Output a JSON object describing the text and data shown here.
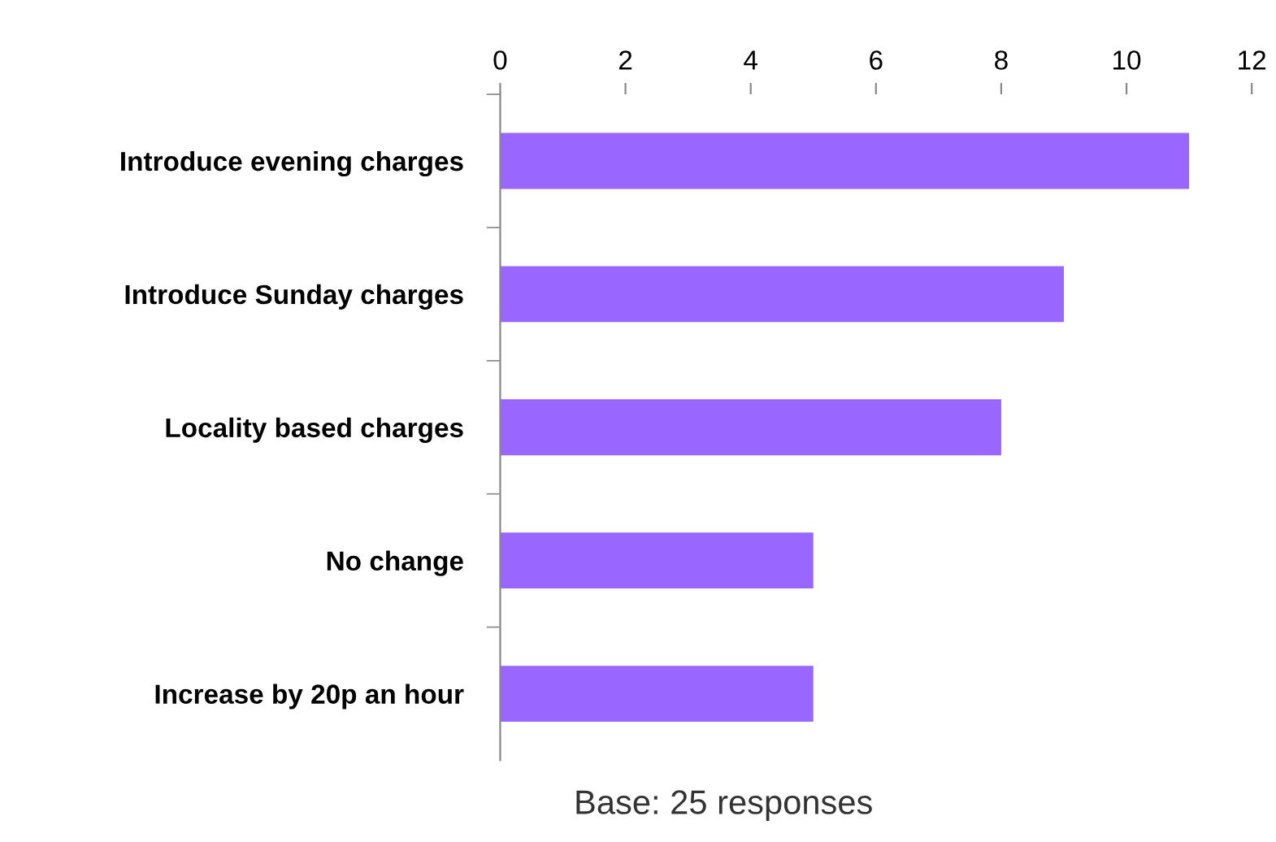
{
  "chart_data": {
    "type": "bar",
    "orientation": "horizontal",
    "categories": [
      "Introduce evening charges",
      "Introduce Sunday charges",
      "Locality based charges",
      "No change",
      "Increase by 20p an hour"
    ],
    "values": [
      11,
      9,
      8,
      5,
      5
    ],
    "color": "#9966ff",
    "xlim": [
      0,
      12
    ],
    "xticks": [
      0,
      2,
      4,
      6,
      8,
      10,
      12
    ],
    "grid": false,
    "legend": false,
    "annotations": [
      "Base: 25 responses"
    ]
  }
}
